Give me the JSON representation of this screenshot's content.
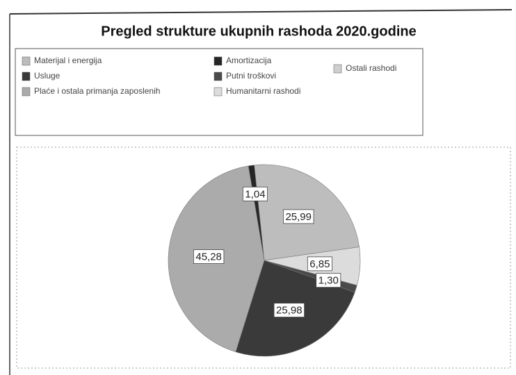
{
  "chart_data": {
    "type": "pie",
    "title": "Pregled strukture ukupnih rashoda  2020.godine",
    "categories": [
      "Materijal i energija",
      "Humanitarni rashodi",
      "Putni troškovi",
      "Usluge",
      "Plaće i ostala primanja zaposlenih",
      "Amortizacija",
      "Ostali rashodi"
    ],
    "values": [
      25.99,
      6.85,
      1.3,
      25.98,
      45.28,
      1.04,
      null
    ],
    "value_labels": [
      "25,99",
      "6,85",
      "1,30",
      "25,98",
      "45,28",
      "1,04",
      null
    ],
    "colors": [
      "#bdbdbd",
      "#dcdcdc",
      "#4a4a4a",
      "#3a3a3a",
      "#ababab",
      "#262626",
      "#cfcfcf"
    ]
  }
}
